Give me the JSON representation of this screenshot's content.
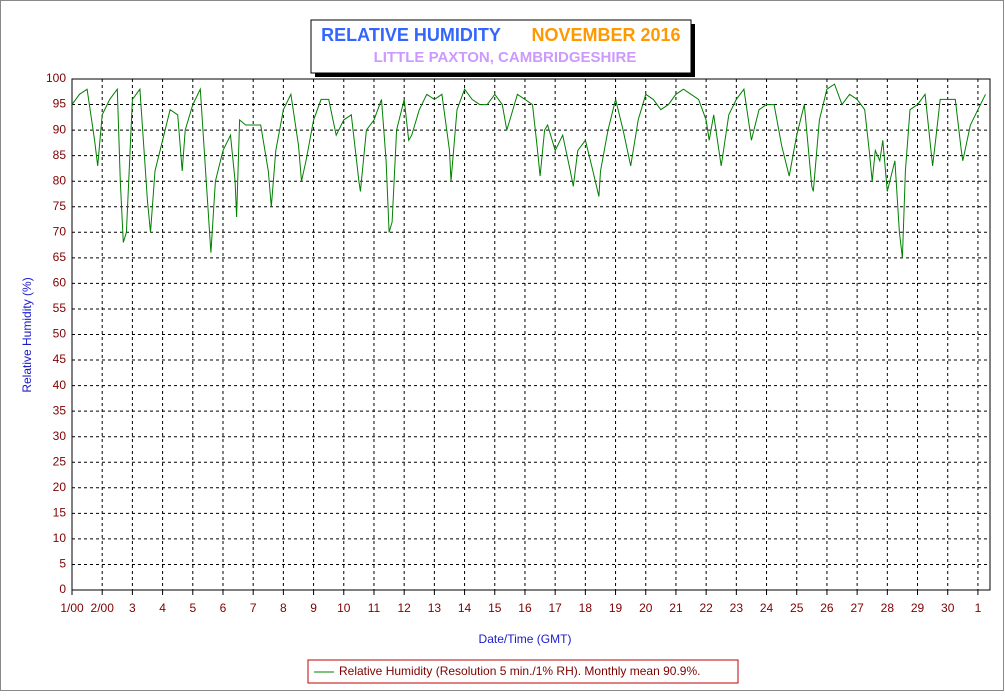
{
  "chart_data": {
    "type": "line",
    "title": "RELATIVE HUMIDITY",
    "title_period": "NOVEMBER 2016",
    "subtitle": "LITTLE PAXTON, CAMBRIDGESHIRE",
    "x_label": "Date/Time (GMT)",
    "y_label": "Relative Humidity (%)",
    "xlim": [
      1,
      31.4
    ],
    "ylim": [
      0,
      100
    ],
    "grid": true,
    "xticks": [
      {
        "value": 1,
        "label": "1/00"
      },
      {
        "value": 2,
        "label": "2/00"
      },
      3,
      4,
      5,
      6,
      7,
      8,
      9,
      10,
      11,
      12,
      13,
      14,
      15,
      16,
      17,
      18,
      19,
      20,
      21,
      22,
      23,
      24,
      25,
      26,
      27,
      28,
      29,
      30,
      {
        "value": 31,
        "label": "1"
      }
    ],
    "yticks": [
      0,
      5,
      10,
      15,
      20,
      25,
      30,
      35,
      40,
      45,
      50,
      55,
      60,
      65,
      70,
      75,
      80,
      85,
      90,
      95,
      100
    ],
    "x": [
      1.0,
      1.25,
      1.5,
      1.75,
      1.85,
      2.0,
      2.25,
      2.5,
      2.6,
      2.7,
      2.8,
      3.0,
      3.25,
      3.5,
      3.6,
      3.75,
      4.0,
      4.25,
      4.5,
      4.65,
      4.75,
      5.0,
      5.25,
      5.5,
      5.6,
      5.75,
      6.0,
      6.25,
      6.4,
      6.45,
      6.55,
      6.75,
      7.0,
      7.25,
      7.5,
      7.6,
      7.75,
      8.0,
      8.25,
      8.5,
      8.6,
      8.75,
      9.0,
      9.25,
      9.5,
      9.75,
      10.0,
      10.25,
      10.5,
      10.55,
      10.75,
      11.0,
      11.25,
      11.4,
      11.5,
      11.6,
      11.75,
      12.0,
      12.15,
      12.25,
      12.5,
      12.75,
      13.0,
      13.25,
      13.5,
      13.55,
      13.75,
      14.0,
      14.25,
      14.5,
      14.75,
      15.0,
      15.25,
      15.4,
      15.5,
      15.75,
      16.0,
      16.25,
      16.4,
      16.5,
      16.65,
      16.75,
      17.0,
      17.25,
      17.5,
      17.6,
      17.75,
      18.0,
      18.25,
      18.45,
      18.5,
      18.75,
      19.0,
      19.25,
      19.5,
      19.75,
      20.0,
      20.25,
      20.5,
      20.75,
      21.0,
      21.25,
      21.5,
      21.75,
      22.0,
      22.1,
      22.25,
      22.45,
      22.5,
      22.75,
      23.0,
      23.25,
      23.5,
      23.75,
      24.0,
      24.25,
      24.5,
      24.75,
      25.0,
      25.25,
      25.5,
      25.55,
      25.75,
      26.0,
      26.25,
      26.5,
      26.75,
      27.0,
      27.25,
      27.4,
      27.5,
      27.6,
      27.75,
      27.85,
      28.0,
      28.25,
      28.4,
      28.5,
      28.6,
      28.75,
      29.0,
      29.25,
      29.5,
      29.6,
      29.75,
      30.0,
      30.25,
      30.45,
      30.5,
      30.75,
      31.0,
      31.25
    ],
    "series": [
      {
        "name": "Relative Humidity (Resolution 5 min./1% RH). Monthly mean 90.9%.",
        "color": "#008000",
        "values": [
          95,
          97,
          98,
          88,
          83,
          93,
          96,
          98,
          80,
          68,
          70,
          96,
          98,
          76,
          70,
          82,
          88,
          94,
          93,
          82,
          90,
          95,
          98,
          75,
          66,
          80,
          86,
          89,
          80,
          73,
          92,
          91,
          91,
          91,
          82,
          75,
          86,
          94,
          97,
          87,
          80,
          84,
          92,
          96,
          96,
          89,
          92,
          93,
          80,
          78,
          90,
          92,
          96,
          84,
          70,
          72,
          90,
          96,
          88,
          89,
          94,
          97,
          96,
          97,
          86,
          80,
          94,
          98,
          96,
          95,
          95,
          97,
          95,
          90,
          92,
          97,
          96,
          95,
          87,
          81,
          90,
          91,
          86,
          89,
          82,
          79,
          86,
          88,
          82,
          77,
          82,
          90,
          96,
          90,
          83,
          92,
          97,
          96,
          94,
          95,
          97,
          98,
          97,
          96,
          92,
          88,
          93,
          85,
          83,
          93,
          96,
          98,
          88,
          94,
          95,
          95,
          87,
          81,
          89,
          95,
          79,
          78,
          92,
          98,
          99,
          95,
          97,
          96,
          94,
          86,
          80,
          86,
          84,
          88,
          78,
          84,
          70,
          65,
          82,
          94,
          95,
          97,
          83,
          88,
          96,
          96,
          96,
          86,
          84,
          91,
          94,
          97
        ]
      }
    ]
  }
}
